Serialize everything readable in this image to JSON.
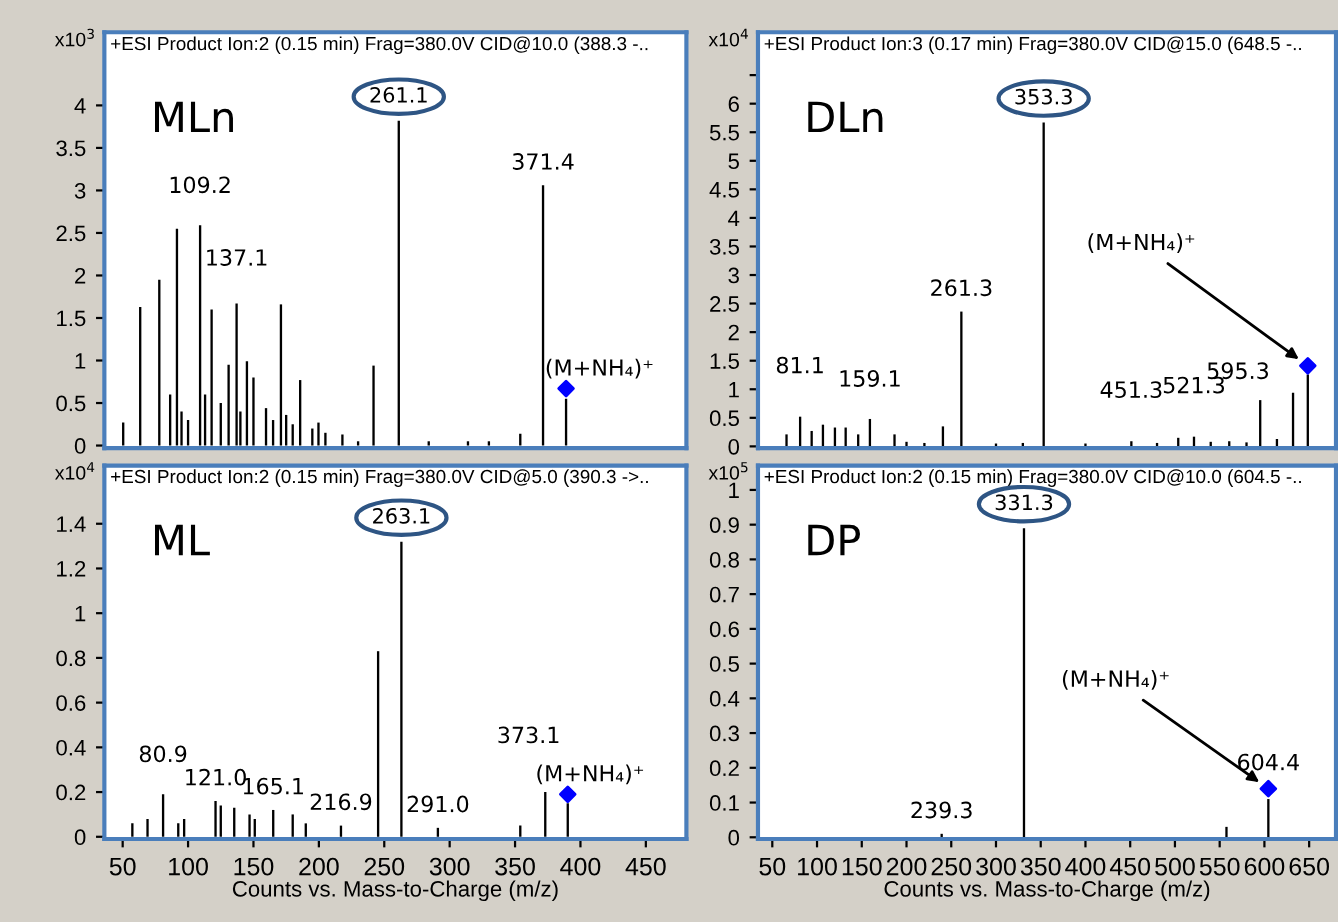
{
  "chart_data": [
    {
      "type": "bar",
      "title": "+ESI Product Ion:2 (0.15 min) Frag=380.0V CID@10.0 (388.3 -..",
      "ylabel": "x10$^{3}$",
      "xlim": [
        36,
        481
      ],
      "ylim": [
        -0.03,
        4.86
      ],
      "xticks": [
        50,
        100,
        150,
        200,
        250,
        300,
        350,
        400,
        450
      ],
      "yticks": [
        0,
        0.5,
        1,
        1.5,
        2,
        2.5,
        3,
        3.5,
        4
      ],
      "tick_labels": "y",
      "series": [
        {
          "color": "#000000",
          "x": [
            50.4,
            63.4,
            78,
            86.3,
            91.5,
            95,
            100,
            109.2,
            113,
            118,
            125,
            131,
            137.1,
            140,
            145,
            150,
            159.6,
            165,
            171,
            175,
            180,
            185.7,
            195,
            199.7,
            205,
            218,
            230,
            241.8,
            261.1,
            284,
            314,
            330,
            354,
            371.4,
            389
          ],
          "values": [
            0.27,
            1.63,
            1.95,
            0.6,
            2.55,
            0.4,
            0.3,
            2.59,
            0.6,
            1.6,
            0.5,
            0.95,
            1.67,
            0.4,
            0.99,
            0.8,
            0.44,
            0.3,
            1.66,
            0.36,
            0.25,
            0.77,
            0.2,
            0.27,
            0.15,
            0.13,
            0.05,
            0.94,
            3.82,
            0.05,
            0.05,
            0.05,
            0.14,
            3.06,
            0.55
          ]
        },
        {
          "type": "scatter",
          "marker": "diamond",
          "color": "#0000ff",
          "x": [
            389
          ],
          "values": [
            0.67
          ]
        }
      ],
      "annotations": [
        "MLn",
        {
          "text": "261.1",
          "x": 261.1,
          "y": 3.82
        },
        {
          "text": "371.4",
          "x": 371.4,
          "y": 3.06
        },
        {
          "text": "109.2",
          "x": 109.2,
          "y": 2.59
        },
        {
          "text": "137.1",
          "x": 137.1,
          "y": 1.67
        },
        {
          "text": "(M+NH₄)⁺",
          "x": 389,
          "y": 0.67
        }
      ]
    },
    {
      "type": "bar",
      "title": "+ESI Product Ion:3 (0.17 min) Frag=380.0V CID@15.0 (648.5 -..",
      "ylabel": "x10$^{4}$",
      "xlim": [
        34,
        680
      ],
      "ylim": [
        -0.03,
        7.25
      ],
      "xticks": [
        50,
        100,
        150,
        200,
        250,
        300,
        350,
        400,
        450,
        500,
        550,
        600,
        650
      ],
      "yticks": [
        0,
        0.5,
        1,
        1.5,
        2,
        2.5,
        3,
        3.5,
        4,
        4.5,
        5,
        5.5,
        6,
        {
          "value": 6.5,
          "label": null
        }
      ],
      "tick_labels": "y",
      "series": [
        {
          "color": "#000000",
          "x": [
            65.9,
            81.1,
            94,
            106.6,
            120,
            132,
            146,
            159.1,
            186.6,
            200,
            220,
            240.7,
            261.3,
            300,
            330,
            353.3,
            400,
            451.3,
            480,
            503.7,
            521.3,
            540,
            560.7,
            580,
            595.3,
            614,
            632,
            648.5
          ],
          "values": [
            0.21,
            0.52,
            0.27,
            0.38,
            0.33,
            0.33,
            0.21,
            0.48,
            0.21,
            0.08,
            0.06,
            0.35,
            2.36,
            0.05,
            0.06,
            5.67,
            0.05,
            0.09,
            0.06,
            0.15,
            0.17,
            0.08,
            0.09,
            0.07,
            0.81,
            0.13,
            0.94,
            1.26
          ]
        },
        {
          "type": "scatter",
          "marker": "diamond",
          "color": "#0000ff",
          "x": [
            648.5
          ],
          "values": [
            1.41
          ]
        }
      ],
      "annotations": [
        "DLn",
        {
          "text": "353.3",
          "x": 353.3,
          "y": 5.67
        },
        {
          "text": "261.3",
          "x": 261.3,
          "y": 2.36
        },
        {
          "text": "81.1",
          "x": 81.1,
          "y": 0.52
        },
        {
          "text": "159.1",
          "x": 159.1,
          "y": 0.48
        },
        {
          "text": "451.3",
          "x": 451.3,
          "y": 0.09
        },
        {
          "text": "521.3",
          "x": 521.3,
          "y": 0.17
        },
        {
          "text": "595.3",
          "x": 595.3,
          "y": 0.81
        },
        {
          "text": "(M+NH₄)⁺",
          "x": 648.5,
          "y": 1.41
        }
      ]
    },
    {
      "type": "bar",
      "title": "+ESI Product Ion:2 (0.15 min) Frag=380.0V CID@5.0 (390.3 ->..",
      "ylabel": "x10$^{4}$",
      "xlabel": "Counts vs. Mass-to-Charge (m/z)",
      "xlim": [
        36,
        481
      ],
      "ylim": [
        -0.01,
        1.66
      ],
      "xticks": [
        50,
        100,
        150,
        200,
        250,
        300,
        350,
        400,
        450
      ],
      "yticks": [
        0,
        0.2,
        0.4,
        0.6,
        0.8,
        1,
        1.2,
        1.4
      ],
      "series": [
        {
          "color": "#000000",
          "x": [
            57.4,
            69,
            80.9,
            92.5,
            97,
            121.0,
            125,
            135.3,
            147,
            151,
            165.1,
            180,
            190,
            216.9,
            245.3,
            263.1,
            291.0,
            354,
            373.1,
            390.3
          ],
          "values": [
            0.06,
            0.08,
            0.19,
            0.06,
            0.08,
            0.16,
            0.14,
            0.13,
            0.1,
            0.08,
            0.12,
            0.1,
            0.06,
            0.05,
            0.83,
            1.32,
            0.04,
            0.05,
            0.2,
            0.15
          ]
        },
        {
          "type": "scatter",
          "marker": "diamond",
          "color": "#0000ff",
          "x": [
            390.3
          ],
          "values": [
            0.19
          ]
        }
      ],
      "annotations": [
        "ML",
        {
          "text": "263.1",
          "x": 263.1,
          "y": 1.32
        },
        {
          "text": "80.9",
          "x": 80.9,
          "y": 0.19
        },
        {
          "text": "121.0",
          "x": 121.0,
          "y": 0.16
        },
        {
          "text": "165.1",
          "x": 165.1,
          "y": 0.12
        },
        {
          "text": "216.9",
          "x": 216.9,
          "y": 0.05
        },
        {
          "text": "291.0",
          "x": 291.0,
          "y": 0.04
        },
        {
          "text": "373.1",
          "x": 373.1,
          "y": 0.2
        },
        {
          "text": "(M+NH₄)⁺",
          "x": 390.3,
          "y": 0.19
        }
      ]
    },
    {
      "type": "bar",
      "title": "+ESI Product Ion:2 (0.15 min) Frag=380.0V CID@10.0 (604.5 -..",
      "ylabel": "x10$^{5}$",
      "xlabel": "Counts vs. Mass-to-Charge (m/z)",
      "xlim": [
        34,
        680
      ],
      "ylim": [
        -0.005,
        1.07
      ],
      "xticks": [
        50,
        100,
        150,
        200,
        250,
        300,
        350,
        400,
        450,
        500,
        550,
        600,
        650
      ],
      "yticks": [
        0,
        0.1,
        0.2,
        0.3,
        0.4,
        0.5,
        0.6,
        0.7,
        0.8,
        0.9,
        1
      ],
      "series": [
        {
          "color": "#000000",
          "x": [
            239.3,
            331.3,
            557.6,
            604.4
          ],
          "values": [
            0.01,
            0.89,
            0.03,
            0.11
          ]
        },
        {
          "type": "scatter",
          "marker": "diamond",
          "color": "#0000ff",
          "x": [
            604.4
          ],
          "values": [
            0.14
          ]
        }
      ],
      "annotations": [
        "DP",
        {
          "text": "331.3",
          "x": 331.3,
          "y": 0.89
        },
        {
          "text": "239.3",
          "x": 239.3,
          "y": 0.01
        },
        {
          "text": "604.4",
          "x": 604.4,
          "y": 0.14
        },
        {
          "text": "(M+NH₄)⁺",
          "x": 604.4,
          "y": 0.14
        }
      ]
    }
  ]
}
